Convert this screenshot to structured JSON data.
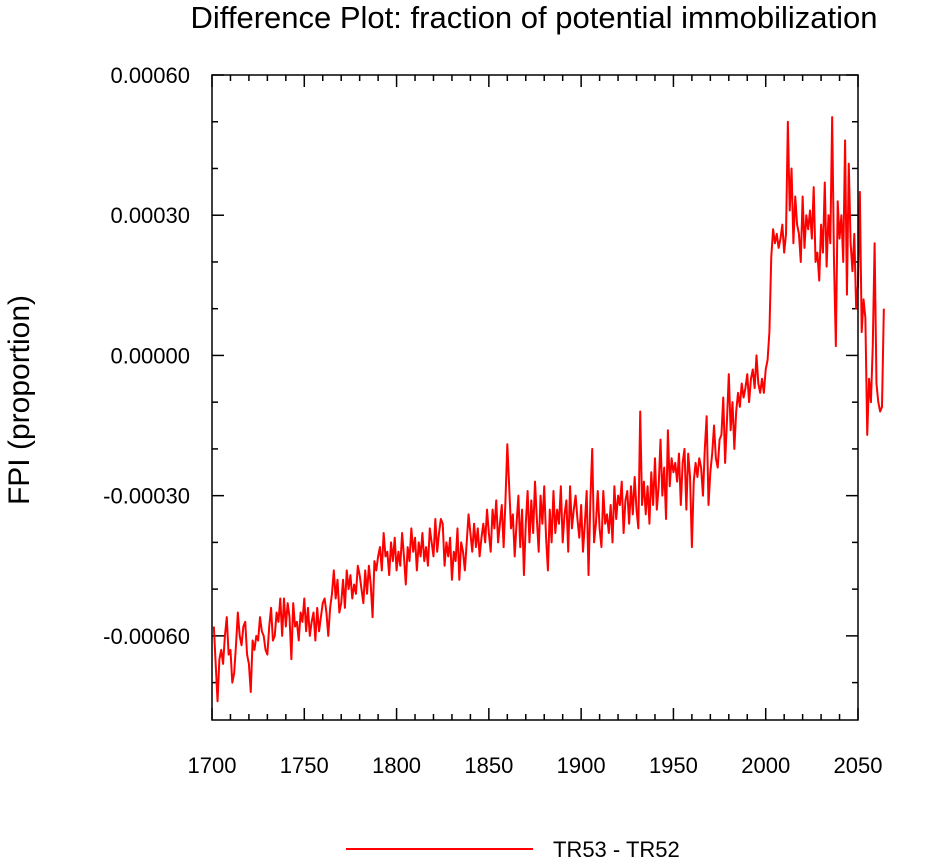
{
  "chart_data": {
    "type": "line",
    "title": "Difference Plot: fraction of potential immobilization",
    "xlabel": "",
    "ylabel": "FPI  (proportion)",
    "xlim": [
      1700,
      2050
    ],
    "ylim": [
      -0.00078,
      0.0006
    ],
    "x_ticks": [
      1700,
      1750,
      1800,
      1850,
      1900,
      1950,
      2000,
      2050
    ],
    "x_tick_labels": [
      "1700",
      "1750",
      "1800",
      "1850",
      "1900",
      "1950",
      "2000",
      "2050"
    ],
    "y_ticks": [
      0.0006,
      0.0003,
      0.0,
      -0.0003,
      -0.0006
    ],
    "y_tick_labels": [
      "0.00060",
      "0.00030",
      "0.00000",
      "-0.00030",
      "-0.00060"
    ],
    "grid": false,
    "legend_position": "bottom-center",
    "series": [
      {
        "name": "TR53 - TR52",
        "color": "#ff0000",
        "x_start": 1701,
        "x_step": 1,
        "values": [
          -0.00058,
          -0.00066,
          -0.00074,
          -0.00065,
          -0.00063,
          -0.00066,
          -0.0006,
          -0.00056,
          -0.00064,
          -0.00063,
          -0.0007,
          -0.00068,
          -0.00062,
          -0.00055,
          -0.0006,
          -0.00062,
          -0.00058,
          -0.00057,
          -0.00064,
          -0.00066,
          -0.00072,
          -0.00061,
          -0.00063,
          -0.0006,
          -0.00061,
          -0.00056,
          -0.00059,
          -0.0006,
          -0.00063,
          -0.00064,
          -0.00058,
          -0.00054,
          -0.00061,
          -0.0006,
          -0.00055,
          -0.00057,
          -0.00052,
          -0.0006,
          -0.00052,
          -0.00058,
          -0.00053,
          -0.00056,
          -0.00065,
          -0.00053,
          -0.00058,
          -0.00057,
          -0.00061,
          -0.00055,
          -0.00057,
          -0.00052,
          -0.00059,
          -0.00054,
          -0.0006,
          -0.00057,
          -0.00055,
          -0.00061,
          -0.00054,
          -0.00059,
          -0.00056,
          -0.00053,
          -0.00052,
          -0.00055,
          -0.0006,
          -0.00054,
          -0.00051,
          -0.00046,
          -0.00052,
          -0.00048,
          -0.00055,
          -0.00053,
          -0.00048,
          -0.00054,
          -0.00046,
          -0.0005,
          -0.00047,
          -0.00052,
          -0.00049,
          -0.00051,
          -0.00045,
          -0.00047,
          -0.0005,
          -0.00053,
          -0.00046,
          -0.00051,
          -0.00045,
          -0.00049,
          -0.00056,
          -0.00044,
          -0.00046,
          -0.00043,
          -0.00041,
          -0.00046,
          -0.00038,
          -0.00043,
          -0.00042,
          -0.00047,
          -0.0004,
          -0.00044,
          -0.00039,
          -0.00046,
          -0.00042,
          -0.00045,
          -0.00038,
          -0.00043,
          -0.00049,
          -0.00041,
          -0.00044,
          -0.00037,
          -0.00042,
          -0.00039,
          -0.00046,
          -0.0004,
          -0.00043,
          -0.00038,
          -0.00044,
          -0.00041,
          -0.00045,
          -0.00037,
          -0.0004,
          -0.00043,
          -0.00035,
          -0.00042,
          -0.00038,
          -0.00035,
          -0.00036,
          -0.00045,
          -0.0004,
          -0.00043,
          -0.00039,
          -0.00048,
          -0.00042,
          -0.00044,
          -0.00037,
          -0.00048,
          -0.0004,
          -0.00042,
          -0.00046,
          -0.0004,
          -0.00034,
          -0.00038,
          -0.00042,
          -0.00036,
          -0.00041,
          -0.00037,
          -0.00043,
          -0.00039,
          -0.00036,
          -0.0004,
          -0.00033,
          -0.00038,
          -0.00042,
          -0.00033,
          -0.00037,
          -0.00031,
          -0.0004,
          -0.00036,
          -0.00032,
          -0.00041,
          -0.00031,
          -0.00019,
          -0.00028,
          -0.00037,
          -0.00034,
          -0.00043,
          -0.00036,
          -0.0003,
          -0.00041,
          -0.00033,
          -0.00047,
          -0.00036,
          -0.00029,
          -0.0004,
          -0.00031,
          -0.00038,
          -0.00027,
          -0.00035,
          -0.00042,
          -0.0003,
          -0.00036,
          -0.00028,
          -0.00039,
          -0.00046,
          -0.00033,
          -0.0004,
          -0.00029,
          -0.00038,
          -0.00033,
          -0.00036,
          -0.00028,
          -0.0004,
          -0.00034,
          -0.00031,
          -0.00042,
          -0.00028,
          -0.00037,
          -0.00033,
          -0.0003,
          -0.00035,
          -0.00039,
          -0.00032,
          -0.00042,
          -0.00036,
          -0.00029,
          -0.00047,
          -0.00031,
          -0.0002,
          -0.0004,
          -0.00036,
          -0.00029,
          -0.00037,
          -0.00041,
          -0.00029,
          -0.00036,
          -0.00034,
          -0.00038,
          -0.00032,
          -0.0004,
          -0.00028,
          -0.00035,
          -0.0003,
          -0.00032,
          -0.00027,
          -0.00038,
          -0.00031,
          -0.00029,
          -0.00036,
          -0.00028,
          -0.00034,
          -0.00026,
          -0.00033,
          -0.00037,
          -0.00012,
          -0.00032,
          -0.00027,
          -0.00034,
          -0.00028,
          -0.00036,
          -0.00025,
          -0.00032,
          -0.00022,
          -0.00033,
          -0.00028,
          -0.00018,
          -0.0003,
          -0.00024,
          -0.00035,
          -0.00016,
          -0.00028,
          -0.00022,
          -0.00025,
          -0.00023,
          -0.00027,
          -0.00021,
          -0.00032,
          -0.00023,
          -0.0002,
          -0.00033,
          -0.00021,
          -0.00026,
          -0.00041,
          -0.00027,
          -0.00023,
          -0.00026,
          -0.00022,
          -0.00024,
          -0.0003,
          -0.0002,
          -0.00013,
          -0.00032,
          -0.00025,
          -0.00021,
          -0.00015,
          -0.00022,
          -0.00024,
          -0.00018,
          -0.00017,
          -9e-05,
          -0.00023,
          -0.00014,
          -4e-05,
          -0.00016,
          -0.0001,
          -0.0002,
          -0.00012,
          -8e-05,
          -0.00011,
          -6e-05,
          -9e-05,
          -7e-05,
          -4e-05,
          -0.0001,
          -5e-05,
          -3e-05,
          -7e-05,
          0.0,
          -6e-05,
          -8e-05,
          -5e-05,
          -8e-05,
          -3e-05,
          -1e-05,
          5e-05,
          0.00021,
          0.00027,
          0.00024,
          0.00026,
          0.00023,
          0.00025,
          0.00028,
          0.00022,
          0.00026,
          0.0005,
          0.00031,
          0.0004,
          0.00024,
          0.00034,
          0.00028,
          0.00026,
          0.0002,
          0.00034,
          0.00023,
          0.0003,
          0.00027,
          0.00031,
          0.00025,
          0.00036,
          0.0002,
          0.00022,
          0.00016,
          0.00028,
          0.00022,
          0.00037,
          0.00019,
          0.0003,
          0.00024,
          0.00051,
          0.0002,
          2e-05,
          0.00033,
          0.00025,
          0.0003,
          0.0002,
          0.00046,
          0.00013,
          0.00041,
          0.00024,
          0.00018,
          0.00026,
          0.0001,
          0.00015,
          0.00035,
          5e-05,
          0.00012,
          8e-05,
          -0.00017,
          -5e-05,
          -0.0001,
          2e-05,
          0.00024,
          -6e-05,
          -0.0001,
          -0.00012,
          -0.00011,
          0.0001
        ]
      }
    ]
  }
}
